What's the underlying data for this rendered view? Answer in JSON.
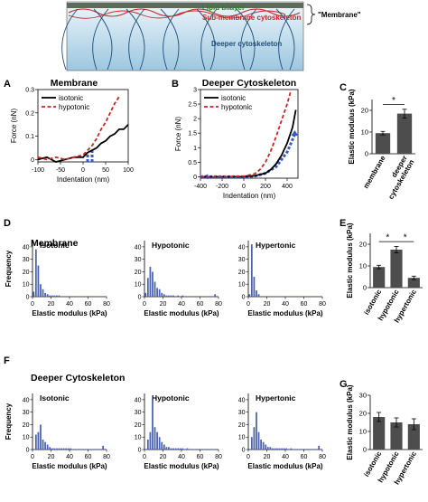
{
  "schematic": {
    "labels": {
      "lipid": "Lipid bilayer",
      "submembrane": "Sub-membrane cytoskeleton",
      "membrane": "\"Membrane\"",
      "deeper": "Deeper cytoskeleton"
    },
    "colors": {
      "lipid": "#2e7d32",
      "submembrane": "#c62828",
      "deeper": "#1f4e79",
      "background_top": "#eef6fb",
      "background_bottom": "#9cc7e0"
    }
  },
  "panel_letters": {
    "A": "A",
    "B": "B",
    "C": "C",
    "D": "D",
    "E": "E",
    "F": "F",
    "G": "G"
  },
  "colors": {
    "isotonic": "#000000",
    "hypotonic": "#d42020",
    "fit": "#3a57c9",
    "bar": "#4d4d4d",
    "hist": "#4a62b4"
  },
  "chart_data": [
    {
      "id": "A",
      "type": "line",
      "title": "Membrane",
      "xlabel": "Indentation (nm)",
      "ylabel": "Force (nN)",
      "xlim": [
        -100,
        100
      ],
      "ylim": [
        -0.01,
        0.3
      ],
      "xticks": [
        -100,
        -50,
        0,
        50,
        100
      ],
      "yticks": [
        0,
        0.1,
        0.2,
        0.3
      ],
      "legend": "top-left",
      "series": [
        {
          "name": "isotonic",
          "style": "solid",
          "x": [
            -100,
            -80,
            -60,
            -40,
            -20,
            0,
            10,
            20,
            30,
            40,
            50,
            60,
            70,
            80,
            90,
            100
          ],
          "y": [
            0.0,
            0.01,
            -0.01,
            0.0,
            0.01,
            0.01,
            0.03,
            0.04,
            0.05,
            0.07,
            0.08,
            0.1,
            0.11,
            0.13,
            0.13,
            0.15
          ]
        },
        {
          "name": "hypotonic",
          "style": "dashed",
          "x": [
            -100,
            -80,
            -60,
            -40,
            -20,
            0,
            10,
            20,
            30,
            40,
            50,
            60,
            70,
            80
          ],
          "y": [
            0.01,
            0.0,
            0.01,
            0.0,
            0.01,
            0.02,
            0.04,
            0.06,
            0.09,
            0.13,
            0.16,
            0.2,
            0.24,
            0.27
          ]
        }
      ],
      "fit_markers": [
        {
          "x": [
            20,
            20
          ],
          "y": [
            -0.01,
            0.04
          ]
        },
        {
          "x": [
            10,
            10
          ],
          "y": [
            -0.01,
            0.03
          ]
        }
      ]
    },
    {
      "id": "B",
      "type": "line",
      "title": "Deeper Cytoskeleton",
      "xlabel": "Indentation (nm)",
      "ylabel": "Force (nN)",
      "xlim": [
        -400,
        500
      ],
      "ylim": [
        -0.05,
        3.0
      ],
      "xticks": [
        -400,
        -200,
        0,
        200,
        400
      ],
      "yticks": [
        0,
        0.5,
        1,
        1.5,
        2,
        2.5,
        3
      ],
      "legend": "top-left",
      "series": [
        {
          "name": "isotonic",
          "style": "solid",
          "x": [
            -400,
            -200,
            0,
            100,
            200,
            250,
            300,
            350,
            400,
            450,
            480
          ],
          "y": [
            0.0,
            0.0,
            0.0,
            0.03,
            0.12,
            0.25,
            0.45,
            0.75,
            1.15,
            1.7,
            2.3
          ]
        },
        {
          "name": "hypotonic",
          "style": "dashed",
          "x": [
            -400,
            -200,
            0,
            100,
            150,
            200,
            250,
            300,
            350,
            400,
            430
          ],
          "y": [
            0.0,
            0.0,
            0.02,
            0.1,
            0.25,
            0.5,
            0.9,
            1.4,
            1.95,
            2.5,
            2.9
          ]
        }
      ],
      "fit_markers": [
        {
          "x": [
            -400,
            -300,
            -200,
            -100,
            0,
            100,
            200,
            300,
            400,
            470
          ],
          "y": [
            0.0,
            0.0,
            0.0,
            0.0,
            0.0,
            0.02,
            0.12,
            0.35,
            0.85,
            1.45
          ]
        }
      ]
    },
    {
      "id": "C",
      "type": "bar",
      "categories": [
        "membrane",
        "deeper cytoskeleton"
      ],
      "category_lines": [
        [
          "membrane"
        ],
        [
          "deeper",
          "cytoskeleton"
        ]
      ],
      "values": [
        9.5,
        18.5
      ],
      "errors": [
        0.8,
        2.0
      ],
      "ylabel": "Elastic modulus (kPa)",
      "ylim": [
        0,
        25
      ],
      "yticks": [
        0,
        10,
        20
      ],
      "significance": [
        {
          "from": 0,
          "to": 1,
          "label": "*"
        }
      ]
    },
    {
      "id": "D",
      "type": "bar",
      "title": "Membrane",
      "ylabel": "Frequency",
      "ylim": [
        0,
        45
      ],
      "yticks": [
        0,
        10,
        20,
        30,
        40
      ],
      "xlim": [
        0,
        80
      ],
      "xticks": [
        0,
        20,
        40,
        60,
        80
      ],
      "bin_width": 2.5,
      "panels": [
        {
          "name": "Isotonic",
          "xlabel": "Elastic modulus (kPa)",
          "values": [
            4,
            38,
            25,
            10,
            6,
            3,
            2,
            1,
            1,
            1,
            1,
            1,
            0,
            0,
            0,
            0,
            0,
            0,
            0,
            0,
            0,
            0,
            0,
            0,
            0,
            0,
            0,
            0,
            0,
            0,
            0,
            0
          ]
        },
        {
          "name": "Hypotonic",
          "xlabel": "Elastic modulus (kPa)",
          "values": [
            3,
            15,
            24,
            20,
            12,
            7,
            6,
            3,
            2,
            1,
            1,
            1,
            1,
            0,
            1,
            0,
            1,
            0,
            0,
            0,
            0,
            0,
            0,
            0,
            0,
            0,
            0,
            0,
            0,
            0,
            2,
            0
          ]
        },
        {
          "name": "Hypertonic",
          "xlabel": "Elastic modulus (kPa)",
          "values": [
            2,
            42,
            16,
            5,
            2,
            0,
            0,
            0,
            0,
            0,
            0,
            0,
            0,
            0,
            0,
            0,
            0,
            0,
            0,
            0,
            0,
            0,
            0,
            0,
            0,
            0,
            0,
            0,
            0,
            0,
            0,
            0
          ]
        }
      ]
    },
    {
      "id": "E",
      "type": "bar",
      "categories": [
        "isotonic",
        "hypotonic",
        "hypertonic"
      ],
      "values": [
        9.5,
        17.5,
        4.5
      ],
      "errors": [
        0.8,
        1.5,
        0.8
      ],
      "ylabel": "Elastic modulus (kPa)",
      "ylim": [
        0,
        25
      ],
      "yticks": [
        0,
        10,
        20
      ],
      "significance": [
        {
          "from": 0,
          "to": 1,
          "label": "*"
        },
        {
          "from": 1,
          "to": 2,
          "label": "*"
        }
      ]
    },
    {
      "id": "F",
      "type": "bar",
      "title": "Deeper Cytoskeleton",
      "ylabel": "Frequency",
      "ylim": [
        0,
        45
      ],
      "yticks": [
        0,
        10,
        20,
        30,
        40
      ],
      "xlim": [
        0,
        80
      ],
      "xticks": [
        0,
        20,
        40,
        60,
        80
      ],
      "bin_width": 2.5,
      "panels": [
        {
          "name": "Isotonic",
          "xlabel": "Elastic modulus (kPa)",
          "values": [
            0,
            12,
            14,
            20,
            8,
            6,
            4,
            2,
            1,
            1,
            1,
            1,
            1,
            1,
            1,
            1,
            1,
            0,
            0,
            0,
            0,
            0,
            0,
            0,
            0,
            0,
            0,
            0,
            0,
            0,
            3,
            0
          ]
        },
        {
          "name": "Hypotonic",
          "xlabel": "Elastic modulus (kPa)",
          "values": [
            0,
            8,
            14,
            41,
            18,
            14,
            10,
            6,
            4,
            2,
            2,
            1,
            1,
            1,
            1,
            1,
            1,
            0,
            1,
            0,
            0,
            0,
            0,
            0,
            0,
            0,
            0,
            0,
            0,
            0,
            0,
            0
          ]
        },
        {
          "name": "Hypertonic",
          "xlabel": "Elastic modulus (kPa)",
          "values": [
            0,
            10,
            18,
            30,
            14,
            8,
            6,
            4,
            2,
            2,
            1,
            1,
            1,
            1,
            1,
            1,
            1,
            0,
            1,
            0,
            0,
            0,
            0,
            0,
            0,
            0,
            0,
            0,
            0,
            0,
            3,
            0
          ]
        }
      ]
    },
    {
      "id": "G",
      "type": "bar",
      "categories": [
        "isotonic",
        "hypotonic",
        "hypertonic"
      ],
      "values": [
        18.0,
        15.0,
        14.0
      ],
      "errors": [
        2.5,
        2.5,
        3.0
      ],
      "ylabel": "Elastic modulus (kPa)",
      "ylim": [
        0,
        30
      ],
      "yticks": [
        0,
        10,
        20,
        30
      ],
      "significance": []
    }
  ]
}
